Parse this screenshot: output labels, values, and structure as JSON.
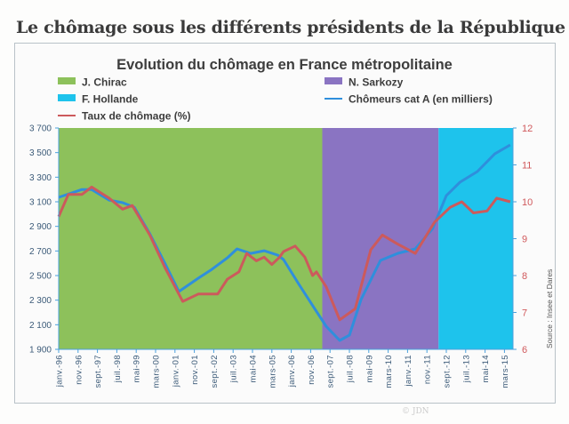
{
  "page_title": "Le chômage sous les différents présidents de la République",
  "watermark": "© JDN",
  "chart_data": {
    "type": "line",
    "title": "Evolution du chômage en France métropolitaine",
    "source": "Source : Insee et Dares",
    "legend": [
      "J. Chirac",
      "N. Sarkozy",
      "F. Hollande",
      "Chômeurs cat A (en milliers)",
      "Taux de chômage (%)"
    ],
    "legend_position": "top",
    "grid": false,
    "periods": [
      {
        "name": "J. Chirac",
        "start": "1996-01",
        "end": "2007-05",
        "color": "#8dc15b"
      },
      {
        "name": "N. Sarkozy",
        "start": "2007-05",
        "end": "2012-05",
        "color": "#8a74c2"
      },
      {
        "name": "F. Hollande",
        "start": "2012-05",
        "end": "2015-07",
        "color": "#1ec3ec"
      }
    ],
    "x_ticks": [
      "janv.-96",
      "nov.-96",
      "sept.-97",
      "juil.-98",
      "mai-99",
      "mars-00",
      "janv.-01",
      "nov.-01",
      "sept.-02",
      "juil.-03",
      "mai-04",
      "mars-05",
      "janv.-06",
      "nov.-06",
      "sept.-07",
      "juil.-08",
      "mai-09",
      "mars-10",
      "janv.-11",
      "nov.-11",
      "sept.-12",
      "juil.-13",
      "mai-14",
      "mars-15"
    ],
    "y_left": {
      "ylim": [
        1900,
        3700
      ],
      "ticks": [
        "3 700",
        "3 500",
        "3 300",
        "3 100",
        "2 900",
        "2 700",
        "2 500",
        "2 300",
        "2 100",
        "1 900"
      ]
    },
    "y_right": {
      "ylim": [
        6,
        12
      ],
      "ticks": [
        "12",
        "11",
        "10",
        "9",
        "8",
        "7",
        "6"
      ]
    },
    "series": [
      {
        "name": "Chômeurs cat A (en milliers)",
        "axis": "left",
        "color": "#2f8fdc",
        "points": [
          [
            "1996-01",
            3136
          ],
          [
            "1997-01",
            3200
          ],
          [
            "1997-06",
            3200
          ],
          [
            "1998-03",
            3114
          ],
          [
            "1998-10",
            3093
          ],
          [
            "1999-04",
            3056
          ],
          [
            "1999-12",
            2840
          ],
          [
            "2000-08",
            2594
          ],
          [
            "2001-03",
            2370
          ],
          [
            "2002-01",
            2478
          ],
          [
            "2002-08",
            2550
          ],
          [
            "2003-04",
            2644
          ],
          [
            "2003-09",
            2717
          ],
          [
            "2004-04",
            2680
          ],
          [
            "2004-11",
            2702
          ],
          [
            "2005-06",
            2666
          ],
          [
            "2005-09",
            2630
          ],
          [
            "2006-05",
            2428
          ],
          [
            "2007-01",
            2232
          ],
          [
            "2007-07",
            2088
          ],
          [
            "2008-02",
            1972
          ],
          [
            "2008-07",
            2015
          ],
          [
            "2009-01",
            2305
          ],
          [
            "2009-11",
            2623
          ],
          [
            "2010-08",
            2681
          ],
          [
            "2011-05",
            2717
          ],
          [
            "2012-02",
            2883
          ],
          [
            "2012-09",
            3150
          ],
          [
            "2013-04",
            3259
          ],
          [
            "2014-01",
            3346
          ],
          [
            "2014-10",
            3490
          ],
          [
            "2015-06",
            3563
          ]
        ]
      },
      {
        "name": "Taux de chômage (%)",
        "axis": "right",
        "color": "#cc5a5c",
        "points": [
          [
            "1996-01",
            9.6
          ],
          [
            "1996-06",
            10.2
          ],
          [
            "1997-01",
            10.2
          ],
          [
            "1997-06",
            10.4
          ],
          [
            "1998-03",
            10.1
          ],
          [
            "1998-10",
            9.8
          ],
          [
            "1999-03",
            9.9
          ],
          [
            "1999-12",
            9.1
          ],
          [
            "2000-08",
            8.2
          ],
          [
            "2001-05",
            7.3
          ],
          [
            "2002-01",
            7.5
          ],
          [
            "2002-11",
            7.5
          ],
          [
            "2003-04",
            7.9
          ],
          [
            "2003-10",
            8.1
          ],
          [
            "2004-02",
            8.6
          ],
          [
            "2004-07",
            8.4
          ],
          [
            "2004-11",
            8.5
          ],
          [
            "2005-03",
            8.3
          ],
          [
            "2005-07",
            8.5
          ],
          [
            "2005-09",
            8.65
          ],
          [
            "2006-03",
            8.8
          ],
          [
            "2006-08",
            8.5
          ],
          [
            "2006-12",
            8.0
          ],
          [
            "2007-02",
            8.1
          ],
          [
            "2007-07",
            7.7
          ],
          [
            "2008-02",
            6.8
          ],
          [
            "2008-10",
            7.1
          ],
          [
            "2009-06",
            8.7
          ],
          [
            "2009-12",
            9.1
          ],
          [
            "2010-08",
            8.85
          ],
          [
            "2011-05",
            8.6
          ],
          [
            "2012-03",
            9.45
          ],
          [
            "2012-11",
            9.85
          ],
          [
            "2013-05",
            10.0
          ],
          [
            "2013-11",
            9.7
          ],
          [
            "2014-06",
            9.75
          ],
          [
            "2014-11",
            10.1
          ],
          [
            "2015-06",
            10.0
          ]
        ]
      }
    ]
  }
}
